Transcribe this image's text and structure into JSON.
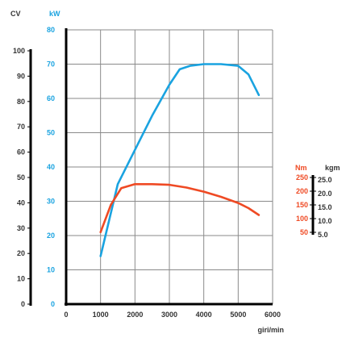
{
  "chart_data": {
    "type": "line",
    "xlabel": "giri/min",
    "xlim": [
      0,
      6000
    ],
    "x_ticks": [
      "0",
      "1000",
      "2000",
      "3000",
      "4000",
      "5000",
      "6000"
    ],
    "grid": true,
    "axes": {
      "cv": {
        "unit": "CV",
        "range": [
          0,
          100
        ],
        "ticks": [
          "0",
          "10",
          "20",
          "30",
          "40",
          "50",
          "60",
          "70",
          "80",
          "90",
          "100"
        ]
      },
      "kw": {
        "unit": "kW",
        "range": [
          0,
          80
        ],
        "ticks": [
          "0",
          "10",
          "20",
          "30",
          "40",
          "50",
          "60",
          "70",
          "80"
        ]
      },
      "nm": {
        "unit": "Nm",
        "ticks": [
          {
            "label": "250",
            "value": 250
          },
          {
            "label": "200",
            "value": 200
          },
          {
            "label": "150",
            "value": 150
          },
          {
            "label": "100",
            "value": 100
          },
          {
            "label": "50",
            "value": 50
          }
        ]
      },
      "kgm": {
        "unit": "kgm",
        "ticks": [
          {
            "label": "25.0",
            "value": 250
          },
          {
            "label": "20.0",
            "value": 200
          },
          {
            "label": "15.0",
            "value": 150
          },
          {
            "label": "10.0",
            "value": 100
          },
          {
            "label": "5.0",
            "value": 50
          }
        ]
      }
    },
    "series": [
      {
        "axis": "kw",
        "color": "#1aa3e0",
        "x": [
          1000,
          1500,
          2000,
          2500,
          3000,
          3300,
          3600,
          4000,
          4500,
          5000,
          5300,
          5600
        ],
        "y": [
          14,
          35,
          45,
          55,
          64,
          68.5,
          69.5,
          70,
          70,
          69.5,
          67,
          61
        ]
      },
      {
        "axis": "kw",
        "color": "#ef4a24",
        "x": [
          1000,
          1300,
          1600,
          2000,
          2500,
          3000,
          3500,
          4000,
          4500,
          5000,
          5300,
          5600
        ],
        "y": [
          21,
          29,
          33.8,
          35,
          35,
          34.8,
          34,
          32.8,
          31.3,
          29.5,
          28,
          26
        ]
      }
    ]
  }
}
